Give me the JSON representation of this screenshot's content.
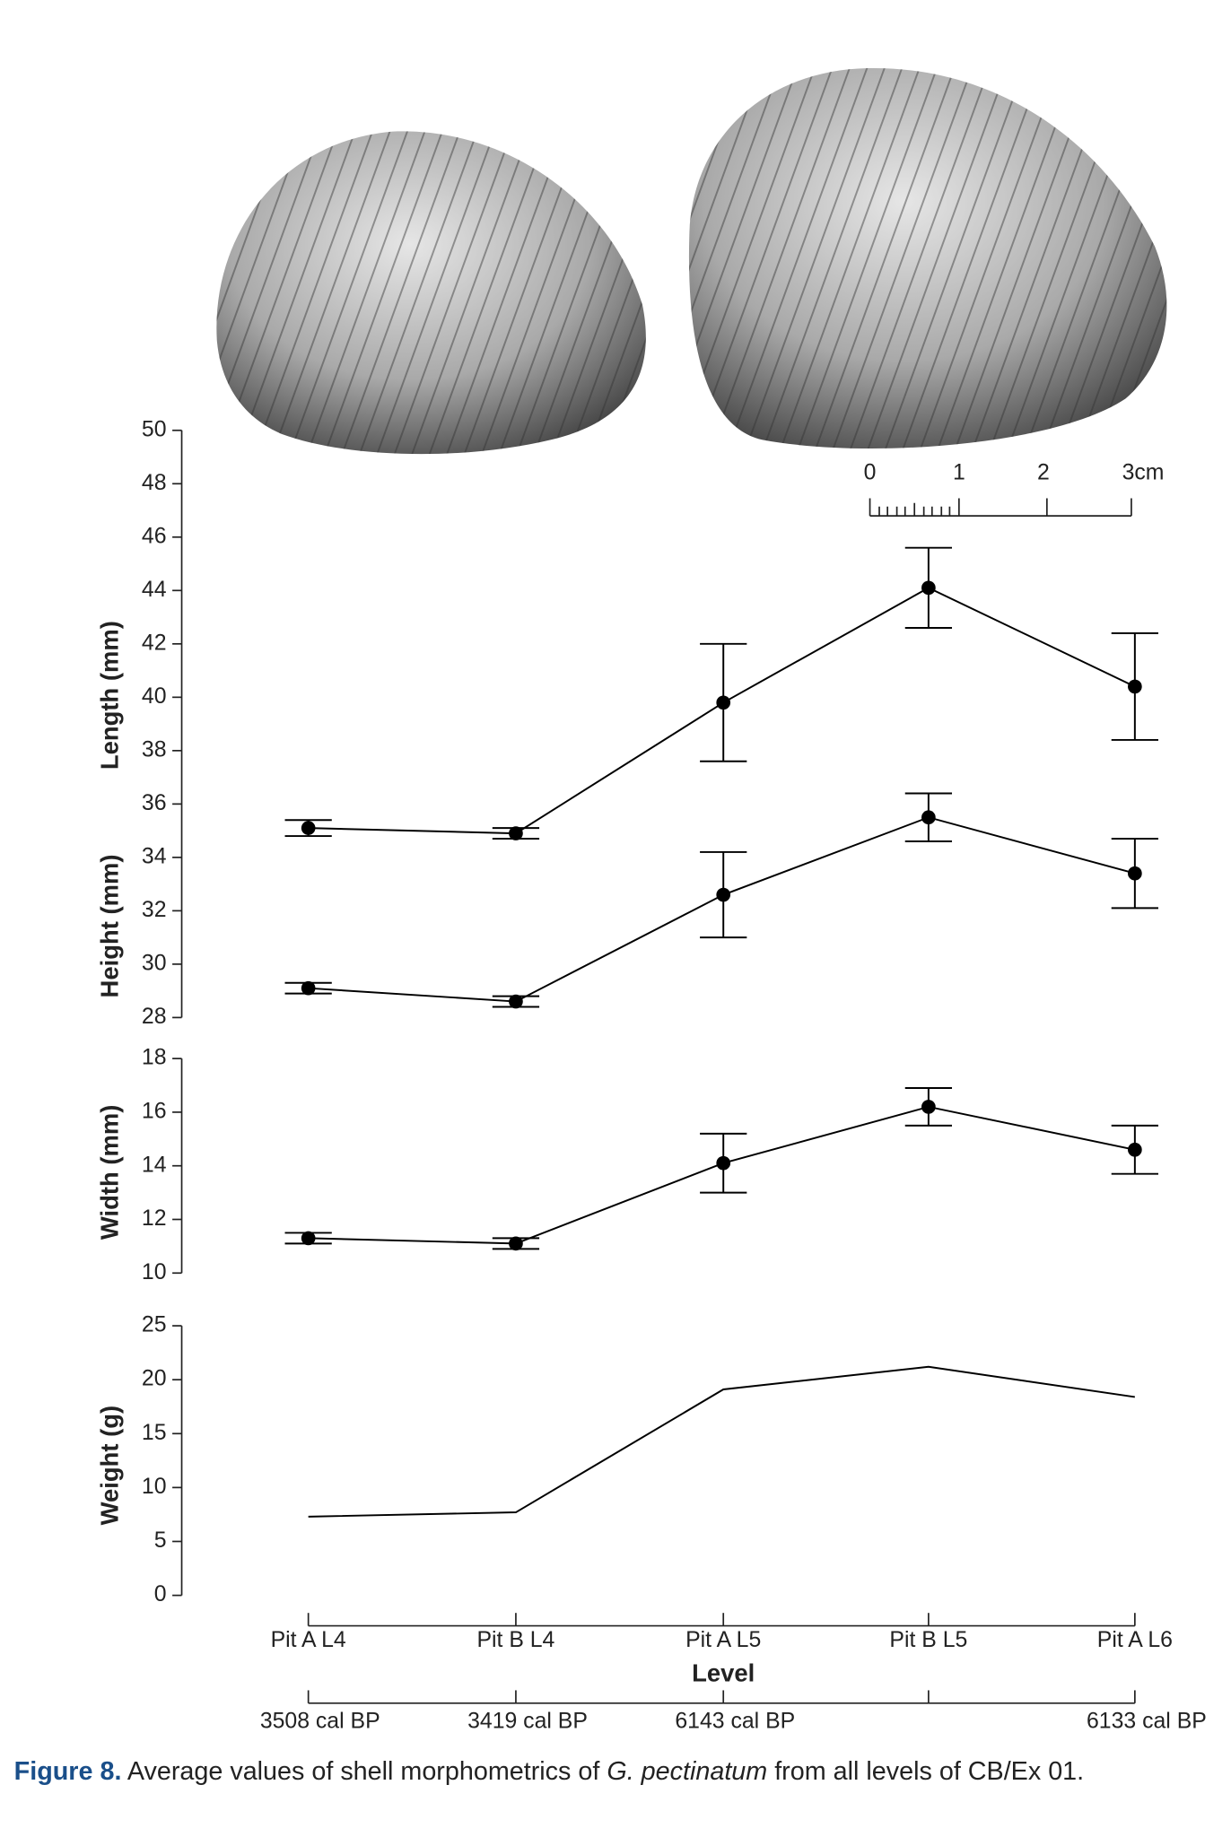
{
  "figure": {
    "scale_bar": {
      "labels": [
        "0",
        "1",
        "2",
        "3cm"
      ]
    },
    "caption": {
      "label": "Figure 8.",
      "before": " Average values of shell morphometrics of ",
      "italic": "G. pectinatum",
      "after": " from all levels of CB/Ex 01."
    }
  },
  "chart_data": [
    {
      "type": "errorline",
      "ylim": [
        28,
        50
      ],
      "yticks": [
        28,
        30,
        32,
        34,
        36,
        38,
        40,
        42,
        44,
        46,
        48,
        50
      ],
      "color": "#000000",
      "series": [
        {
          "name": "Length (mm)",
          "values": [
            35.1,
            34.9,
            39.8,
            44.1,
            40.4
          ],
          "errors": [
            0.3,
            0.2,
            2.2,
            1.5,
            2.0
          ]
        },
        {
          "name": "Height (mm)",
          "values": [
            29.1,
            28.6,
            32.6,
            35.5,
            33.4
          ],
          "errors": [
            0.2,
            0.2,
            1.6,
            0.9,
            1.3
          ]
        }
      ]
    },
    {
      "type": "errorline",
      "ylim": [
        10,
        18
      ],
      "yticks": [
        10,
        12,
        14,
        16,
        18
      ],
      "color": "#000000",
      "series": [
        {
          "name": "Width (mm)",
          "values": [
            11.3,
            11.1,
            14.1,
            16.2,
            14.6
          ],
          "errors": [
            0.2,
            0.2,
            1.1,
            0.7,
            0.9
          ]
        }
      ]
    },
    {
      "type": "line",
      "ylim": [
        0,
        25
      ],
      "yticks": [
        0,
        5,
        10,
        15,
        20,
        25
      ],
      "color": "#000000",
      "series": [
        {
          "name": "Weight (g)",
          "values": [
            7.3,
            7.7,
            19.1,
            21.2,
            18.4
          ]
        }
      ],
      "categories": [
        "Pit A L4",
        "Pit B L4",
        "Pit A L5",
        "Pit B L5",
        "Pit A L6"
      ],
      "xlabel": "Level",
      "dates": [
        "3508 cal BP",
        "3419 cal BP",
        "6143 cal BP",
        null,
        "6133 cal BP"
      ]
    }
  ]
}
